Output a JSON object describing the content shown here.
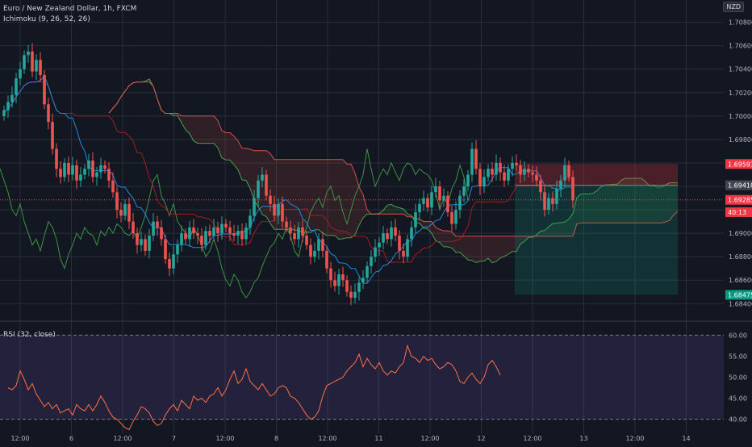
{
  "header": {
    "title": "Euro / New Zealand Dollar, 1h, FXCM",
    "ichimoku_label": "Ichimoku (9, 26, 52, 26)",
    "rsi_label": "RSI (32, close)",
    "currency_badge": "NZD"
  },
  "colors": {
    "background": "#131722",
    "grid": "#2a2e39",
    "axis_text": "#b2b5be",
    "bull": "#26a69a",
    "bear": "#ef5350",
    "tenkan": "#2196f3",
    "kijun": "#b71c1c",
    "cloud_bull": "#4caf50",
    "cloud_bear": "#ef5350",
    "chikou": "#43a047",
    "rsi_line": "#ff7043",
    "rsi_band": "#7e57c2",
    "stop_zone": "#f23645",
    "target_zone": "#089981"
  },
  "chart_data": {
    "type": "candlestick",
    "instrument": "Euro / New Zealand Dollar",
    "timeframe": "1h",
    "source": "FXCM",
    "x_tick_labels": [
      "12:00",
      "6",
      "12:00",
      "7",
      "12:00",
      "8",
      "12:00",
      "11",
      "12:00",
      "12",
      "12:00",
      "13",
      "12:00",
      "14"
    ],
    "price_ticks": [
      "1.70800",
      "1.70600",
      "1.70400",
      "1.70200",
      "1.70000",
      "1.69800",
      "1.69600",
      "1.69400",
      "1.69200",
      "1.69000",
      "1.68800",
      "1.68600",
      "1.68400"
    ],
    "ylim": [
      1.6834,
      1.7099
    ],
    "price_tags": [
      {
        "label": "1.69591",
        "value": 1.69591,
        "color": "#f23645"
      },
      {
        "label": "1.69410",
        "value": 1.6941,
        "color": "#434651"
      },
      {
        "label": "1.69285",
        "value": 1.69285,
        "color": "#f23645"
      },
      {
        "label": "40:13",
        "value": 1.6918,
        "color": "#f23645"
      },
      {
        "label": "1.68475",
        "value": 1.68475,
        "color": "#089981"
      }
    ],
    "close": [
      1.7005,
      1.7012,
      1.7018,
      1.7032,
      1.704,
      1.7052,
      1.7055,
      1.7038,
      1.7048,
      1.7035,
      1.701,
      1.6995,
      1.6972,
      1.6955,
      1.6948,
      1.696,
      1.695,
      1.6958,
      1.6945,
      1.695,
      1.6955,
      1.6962,
      1.6948,
      1.6952,
      1.6958,
      1.6955,
      1.6945,
      1.6935,
      1.692,
      1.6915,
      1.6925,
      1.691,
      1.69,
      1.689,
      1.6895,
      1.6885,
      1.6898,
      1.691,
      1.6905,
      1.6895,
      1.6878,
      1.687,
      1.6882,
      1.689,
      1.69,
      1.6895,
      1.6905,
      1.69,
      1.6898,
      1.689,
      1.6902,
      1.6898,
      1.6905,
      1.69,
      1.6908,
      1.6905,
      1.69,
      1.6898,
      1.6902,
      1.6895,
      1.6905,
      1.6915,
      1.693,
      1.6945,
      1.695,
      1.6932,
      1.6925,
      1.6915,
      1.6925,
      1.691,
      1.6905,
      1.69,
      1.6895,
      1.6905,
      1.6898,
      1.689,
      1.688,
      1.6885,
      1.6895,
      1.6885,
      1.687,
      1.686,
      1.6855,
      1.6865,
      1.686,
      1.685,
      1.6845,
      1.685,
      1.6858,
      1.6862,
      1.6872,
      1.688,
      1.6888,
      1.6892,
      1.69,
      1.6895,
      1.6905,
      1.6898,
      1.6885,
      1.688,
      1.6895,
      1.6905,
      1.6918,
      1.6925,
      1.693,
      1.6922,
      1.6935,
      1.694,
      1.6928,
      1.6932,
      1.6918,
      1.6908,
      1.692,
      1.6932,
      1.694,
      1.695,
      1.6972,
      1.6955,
      1.694,
      1.6948,
      1.6955,
      1.695,
      1.696,
      1.6952,
      1.6945,
      1.6955,
      1.696,
      1.6958,
      1.695,
      1.6955,
      1.6952,
      1.695,
      1.6945,
      1.6935,
      1.692,
      1.693,
      1.6925,
      1.6938,
      1.6945,
      1.6958,
      1.6948,
      1.6928
    ],
    "rsi": {
      "levels": [
        60,
        40
      ],
      "yticks": [
        "60.00",
        "55.00",
        "50.00",
        "45.00",
        "40.00"
      ],
      "ylim": [
        38,
        62
      ],
      "values": [
        47.5,
        47.0,
        48.0,
        51.5,
        49.5,
        47.0,
        48.5,
        46.0,
        44.5,
        43.0,
        44.0,
        42.5,
        43.5,
        41.5,
        42.0,
        42.5,
        41.0,
        43.5,
        42.5,
        42.0,
        43.5,
        42.0,
        43.5,
        45.5,
        44.0,
        42.0,
        40.5,
        40.0,
        39.0,
        38.0,
        37.5,
        39.5,
        41.0,
        43.0,
        42.5,
        41.5,
        39.5,
        38.5,
        39.0,
        41.0,
        42.5,
        43.5,
        42.0,
        44.5,
        43.5,
        42.5,
        45.5,
        44.5,
        45.0,
        44.0,
        45.5,
        46.0,
        47.5,
        45.5,
        47.0,
        49.5,
        51.5,
        48.5,
        49.5,
        52.0,
        49.0,
        48.0,
        47.0,
        48.5,
        47.0,
        45.5,
        46.0,
        47.5,
        48.0,
        47.5,
        45.5,
        45.0,
        44.0,
        42.5,
        41.0,
        40.0,
        40.5,
        42.0,
        45.5,
        48.0,
        48.5,
        49.0,
        49.5,
        50.0,
        51.5,
        52.5,
        53.5,
        55.5,
        52.5,
        54.5,
        53.0,
        52.0,
        53.5,
        51.5,
        50.5,
        51.5,
        51.0,
        52.5,
        53.5,
        57.5,
        55.0,
        54.5,
        53.5,
        55.0,
        54.0,
        54.5,
        53.0,
        52.0,
        52.5,
        53.5,
        53.0,
        51.5,
        49.0,
        48.5,
        50.0,
        51.0,
        49.5,
        48.5,
        50.0,
        53.0,
        54.0,
        52.5,
        50.5
      ]
    }
  }
}
